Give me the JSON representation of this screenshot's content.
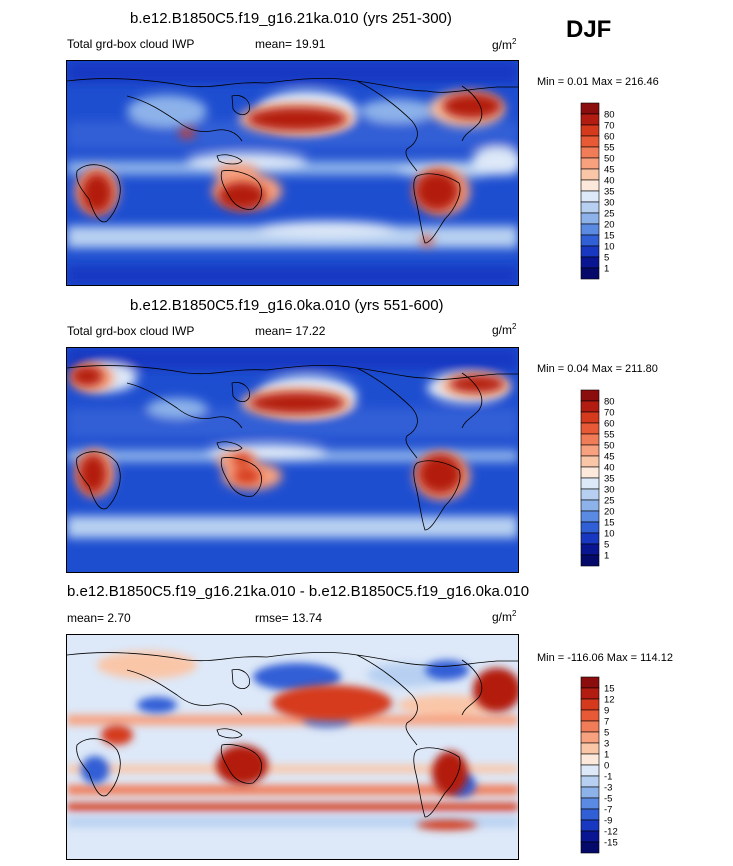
{
  "season": "DJF",
  "panels": [
    {
      "title": "b.e12.B1850C5.f19_g16.21ka.010 (yrs 251-300)",
      "left_label": "Total grd-box cloud IWP",
      "center_label": "mean=  19.91",
      "units_base": "g/m",
      "units_exp": "2",
      "minmax": "Min =   0.01 Max = 216.46",
      "colorbar": {
        "labels": [
          "80",
          "70",
          "60",
          "55",
          "50",
          "45",
          "40",
          "35",
          "30",
          "25",
          "20",
          "15",
          "10",
          "5",
          "1"
        ],
        "colors": [
          "#8c0d0d",
          "#b31c10",
          "#d53a1c",
          "#e85a35",
          "#f17c58",
          "#f7a17f",
          "#fac6a8",
          "#fde9dc",
          "#dde8f8",
          "#b7d0f1",
          "#8db2ea",
          "#5b8ae3",
          "#305fd6",
          "#1838c2",
          "#0a1592",
          "#050a6a"
        ]
      }
    },
    {
      "title": "b.e12.B1850C5.f19_g16.0ka.010 (yrs 551-600)",
      "left_label": "Total grd-box cloud IWP",
      "center_label": "mean=  17.22",
      "units_base": "g/m",
      "units_exp": "2",
      "minmax": "Min =   0.04 Max = 211.80",
      "colorbar": {
        "labels": [
          "80",
          "70",
          "60",
          "55",
          "50",
          "45",
          "40",
          "35",
          "30",
          "25",
          "20",
          "15",
          "10",
          "5",
          "1"
        ],
        "colors": [
          "#8c0d0d",
          "#b31c10",
          "#d53a1c",
          "#e85a35",
          "#f17c58",
          "#f7a17f",
          "#fac6a8",
          "#fde9dc",
          "#dde8f8",
          "#b7d0f1",
          "#8db2ea",
          "#5b8ae3",
          "#305fd6",
          "#1838c2",
          "#0a1592",
          "#050a6a"
        ]
      }
    },
    {
      "title": "b.e12.B1850C5.f19_g16.21ka.010 - b.e12.B1850C5.f19_g16.0ka.010",
      "left_label": "mean=   2.70",
      "center_label": "rmse=  13.74",
      "units_base": "g/m",
      "units_exp": "2",
      "minmax": "Min = -116.06 Max = 114.12",
      "colorbar": {
        "labels": [
          "15",
          "12",
          "9",
          "7",
          "5",
          "3",
          "1",
          "0",
          "-1",
          "-3",
          "-5",
          "-7",
          "-9",
          "-12",
          "-15"
        ],
        "colors": [
          "#8c0d0d",
          "#b31c10",
          "#d53a1c",
          "#e85a35",
          "#f17c58",
          "#f7a17f",
          "#fac6a8",
          "#fde9dc",
          "#dde8f8",
          "#b7d0f1",
          "#8db2ea",
          "#5b8ae3",
          "#305fd6",
          "#1838c2",
          "#0a1592",
          "#050a6a"
        ]
      }
    }
  ]
}
